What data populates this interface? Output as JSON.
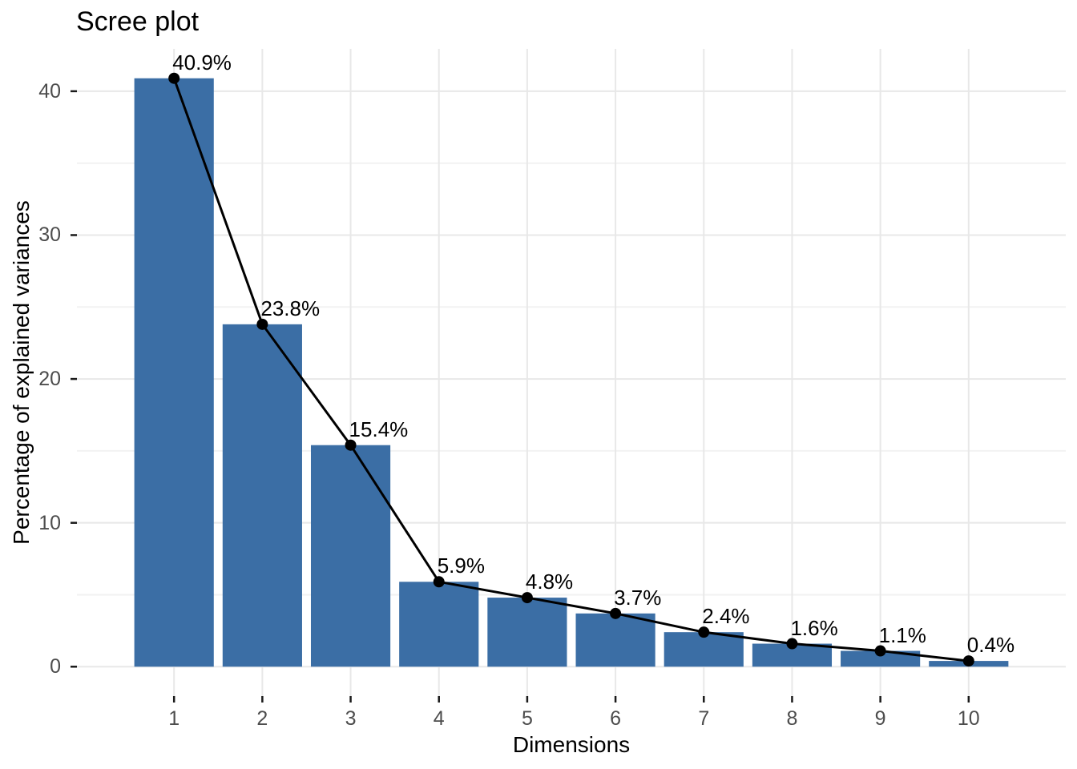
{
  "chart_data": {
    "type": "bar",
    "title": "Scree plot",
    "xlabel": "Dimensions",
    "ylabel": "Percentage of explained variances",
    "categories": [
      "1",
      "2",
      "3",
      "4",
      "5",
      "6",
      "7",
      "8",
      "9",
      "10"
    ],
    "values": [
      40.9,
      23.8,
      15.4,
      5.9,
      4.8,
      3.7,
      2.4,
      1.6,
      1.1,
      0.4
    ],
    "point_labels": [
      "40.9%",
      "23.8%",
      "15.4%",
      "5.9%",
      "4.8%",
      "3.7%",
      "2.4%",
      "1.6%",
      "1.1%",
      "0.4%"
    ],
    "overlay": {
      "type": "line",
      "values": [
        40.9,
        23.8,
        15.4,
        5.9,
        4.8,
        3.7,
        2.4,
        1.6,
        1.1,
        0.4
      ],
      "show_points": true
    },
    "y_ticks": [
      0,
      10,
      20,
      30,
      40
    ],
    "ylim": [
      0,
      42.9
    ],
    "grid": true,
    "legend": "none",
    "colors": {
      "bar_fill": "#3b6ea5",
      "line": "#000000",
      "point": "#000000",
      "grid_major": "#e8e8e8",
      "grid_minor": "#f2f2f2",
      "axis_tick": "#1a1a1a",
      "tick_label": "#4d4d4d",
      "title_text": "#000000",
      "background": "#ffffff"
    }
  }
}
